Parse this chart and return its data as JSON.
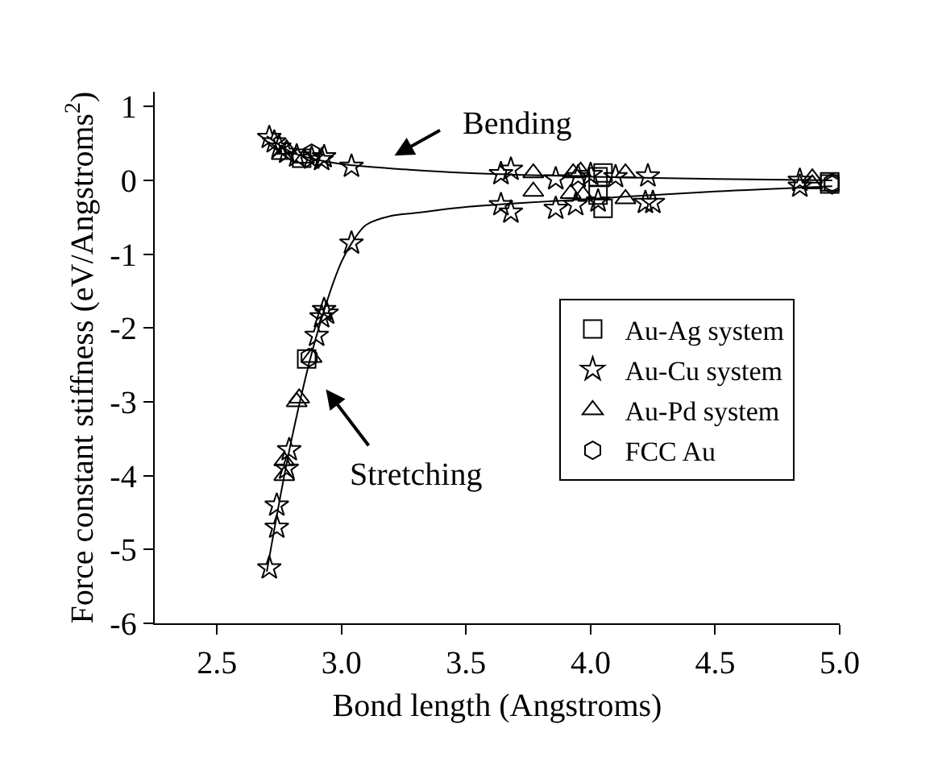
{
  "chart_data": {
    "type": "scatter",
    "xlabel": "Bond length (Angstroms)",
    "ylabel": "Force constant stiffness (eV/Angstroms$^{2}$)",
    "xlim": [
      2.25,
      5.0
    ],
    "xticks": [
      {
        "value": 2.5,
        "label": "2.5"
      },
      {
        "value": 3.0,
        "label": "3.0"
      },
      {
        "value": 3.5,
        "label": "3.5"
      },
      {
        "value": 4.0,
        "label": "4.0"
      },
      {
        "value": 4.5,
        "label": "4.5"
      },
      {
        "value": 5.0,
        "label": "5.0"
      }
    ],
    "ylim": [
      -6,
      1.2
    ],
    "yticks": [
      -6,
      -5,
      -4,
      -3,
      -2,
      -1,
      0,
      1
    ],
    "grid": false,
    "legend": "right",
    "annotations": [
      "Bending",
      "Stretching"
    ],
    "series": [
      {
        "name": "Au-Ag system",
        "marker": "square",
        "color": "#000000",
        "x": [
          2.84,
          4.03,
          4.05,
          4.96,
          4.03,
          4.05,
          2.86,
          4.96
        ],
        "values": [
          0.3,
          0.05,
          0.1,
          -0.02,
          -0.2,
          -0.38,
          -2.42,
          -0.05
        ]
      },
      {
        "name": "Au-Cu system",
        "marker": "star",
        "color": "#000000",
        "x": [
          2.71,
          2.73,
          2.75,
          2.78,
          2.82,
          2.88,
          2.92,
          2.93,
          3.04,
          3.64,
          3.68,
          3.86,
          3.95,
          4.0,
          4.1,
          4.23,
          4.84,
          2.71,
          2.74,
          2.74,
          2.78,
          2.79,
          2.9,
          2.92,
          2.93,
          2.94,
          3.04,
          3.64,
          3.68,
          3.86,
          3.94,
          4.03,
          4.22,
          4.25,
          4.84
        ],
        "values": [
          0.58,
          0.52,
          0.45,
          0.38,
          0.33,
          0.3,
          0.28,
          0.32,
          0.19,
          0.09,
          0.15,
          0.02,
          0.05,
          0.08,
          0.05,
          0.06,
          0.0,
          -5.25,
          -4.7,
          -4.4,
          -3.9,
          -3.65,
          -2.1,
          -1.85,
          -1.75,
          -1.8,
          -0.85,
          -0.33,
          -0.43,
          -0.38,
          -0.33,
          -0.28,
          -0.3,
          -0.3,
          -0.08
        ]
      },
      {
        "name": "Au-Pd system",
        "marker": "triangle",
        "color": "#000000",
        "x": [
          2.76,
          2.78,
          2.85,
          3.77,
          3.93,
          3.96,
          4.14,
          4.89,
          2.77,
          2.77,
          2.82,
          2.83,
          2.88,
          3.77,
          3.92,
          3.97,
          4.14,
          4.89
        ],
        "values": [
          0.35,
          0.42,
          0.3,
          0.1,
          0.1,
          0.12,
          0.1,
          0.03,
          -4.0,
          -3.8,
          -3.0,
          -2.95,
          -2.4,
          -0.15,
          -0.18,
          -0.2,
          -0.25,
          -0.05
        ]
      },
      {
        "name": "FCC Au",
        "color": "#000000",
        "x": [
          2.88,
          4.97,
          2.87,
          4.97
        ],
        "values": [
          0.37,
          -0.03,
          -2.4,
          -0.06
        ]
      },
      {
        "type": "line",
        "marker": "none",
        "color": "#000000",
        "x": [
          2.7,
          2.8,
          2.9,
          3.0,
          3.25,
          3.5,
          4.0,
          4.5,
          4.97
        ],
        "values": [
          0.6,
          0.38,
          0.28,
          0.22,
          0.15,
          0.1,
          0.05,
          0.02,
          0.0
        ]
      },
      {
        "type": "line",
        "marker": "none",
        "color": "#000000",
        "x": [
          2.7,
          2.8,
          2.9,
          3.0,
          3.05,
          3.1,
          3.2,
          3.3,
          3.5,
          4.0,
          4.5,
          4.97
        ],
        "values": [
          -5.3,
          -3.5,
          -2.1,
          -1.1,
          -0.8,
          -0.6,
          -0.48,
          -0.44,
          -0.36,
          -0.25,
          -0.15,
          -0.08
        ]
      }
    ]
  }
}
